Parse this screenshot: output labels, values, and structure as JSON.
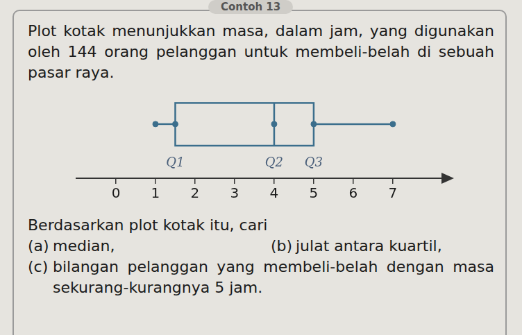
{
  "document": {
    "heading": "Contoh 13",
    "intro": "Plot kotak menunjukkan masa, dalam jam, yang digunakan oleh 144 orang pelanggan untuk membeli-belah di sebuah pasar raya.",
    "prompt": "Berdasarkan plot kotak itu, cari",
    "questions": [
      {
        "label": "(a)",
        "text": "median,"
      },
      {
        "label": "(b)",
        "text": "julat antara kuartil,"
      },
      {
        "label": "(c)",
        "text": "bilangan pelanggan yang membeli-belah dengan masa sekurang-kurangnya 5 jam."
      }
    ]
  },
  "chart_data": {
    "type": "box",
    "stats": {
      "min": 1,
      "q1": 1.5,
      "median": 4,
      "q3": 5,
      "max": 7
    },
    "color": "#3b6e8c",
    "annotations": [
      "Q1",
      "Q2",
      "Q3"
    ],
    "xlim": [
      -1,
      8.3
    ],
    "xticks": [
      0,
      1,
      2,
      3,
      4,
      5,
      6,
      7
    ],
    "grid": false
  }
}
